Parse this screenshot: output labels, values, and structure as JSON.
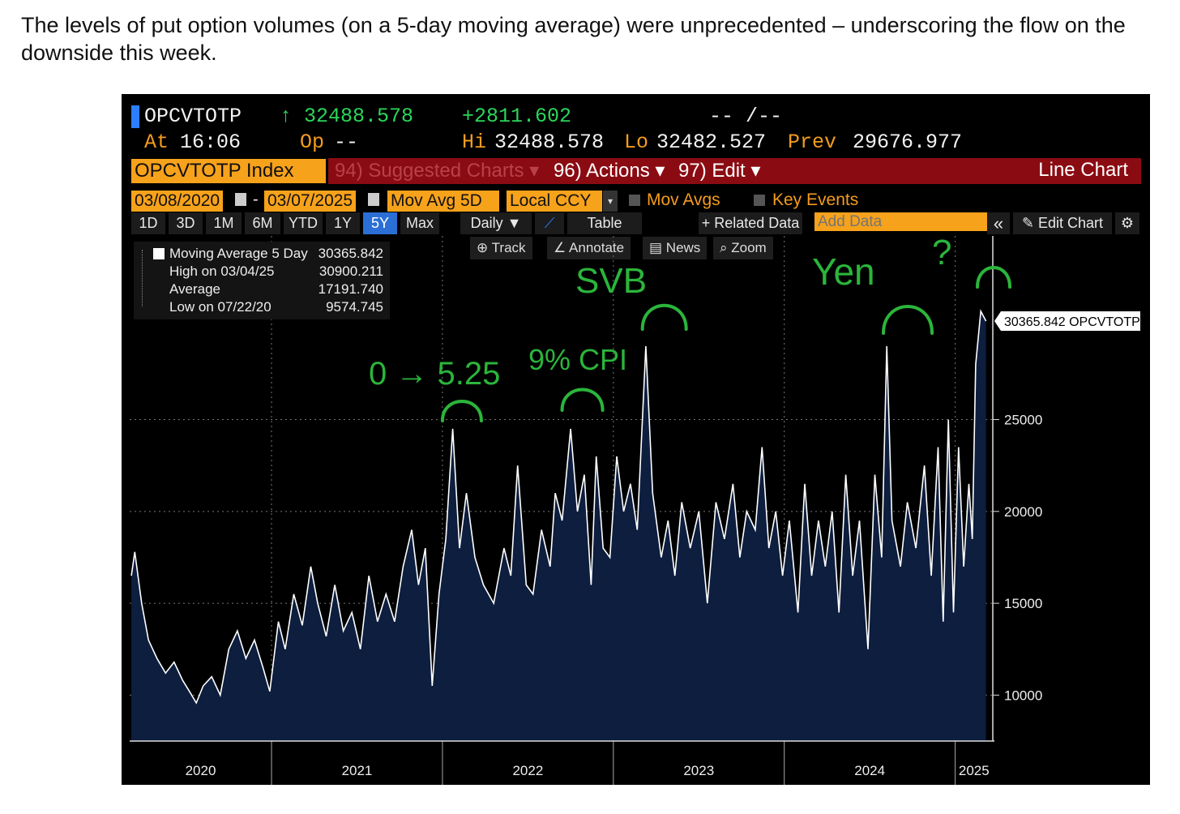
{
  "caption": "The levels of put option volumes (on a 5-day moving average) were unprecedented – underscoring the flow on the downside this week.",
  "header": {
    "ticker": "OPCVTOTP",
    "last": "↑ 32488.578",
    "change": "+2811.602",
    "dashes": "-- /--",
    "at_label": "At",
    "time": "16:06",
    "op_label": "Op",
    "op_value": "--",
    "hi_label": "Hi",
    "hi_value": "32488.578",
    "lo_label": "Lo",
    "lo_value": "32482.527",
    "prev_label": "Prev",
    "prev_value": "29676.977"
  },
  "menu": {
    "index_label": "OPCVTOTP Index",
    "suggested": "94) Suggested Charts ▾",
    "actions": "96) Actions ▾",
    "edit": "97) Edit ▾",
    "chart_type": "Line Chart"
  },
  "controls": {
    "start_date": "03/08/2020",
    "end_date": "03/07/2025",
    "dash": "-",
    "mov_avg": "Mov Avg 5D",
    "currency": "Local CCY",
    "mov_avgs": "Mov Avgs",
    "key_events": "Key Events"
  },
  "ranges": [
    "1D",
    "3D",
    "1M",
    "6M",
    "YTD",
    "1Y",
    "5Y",
    "Max"
  ],
  "active_range": "5Y",
  "toolbar": {
    "daily": "Daily ▼",
    "table": "Table",
    "related": "+ Related Data",
    "add_data_placeholder": "Add Data",
    "collapse": "«",
    "edit_chart": "Edit Chart"
  },
  "chart_tools": [
    "Track",
    "Annotate",
    "News",
    "Zoom"
  ],
  "legend": {
    "rows": [
      {
        "label": "Moving Average 5 Day",
        "value": "30365.842"
      },
      {
        "label": "High on 03/04/25",
        "value": "30900.211"
      },
      {
        "label": "Average",
        "value": "17191.740"
      },
      {
        "label": "Low on 07/22/20",
        "value": "9574.745"
      }
    ]
  },
  "annotations": [
    "0 → 5.25",
    "9% CPI",
    "SVB",
    "Yen",
    "?"
  ],
  "colors": {
    "background": "#000000",
    "fill": "#0d1e3f",
    "line": "#ffffff",
    "annotation": "#2bb53b",
    "orange": "#f39c1c",
    "red_bar": "#8b0b12"
  },
  "chart_data": {
    "type": "area",
    "title": "",
    "series": [
      {
        "name": "Moving Average 5 Day",
        "points": [
          [
            2020.18,
            16500
          ],
          [
            2020.2,
            17800
          ],
          [
            2020.24,
            15000
          ],
          [
            2020.28,
            13000
          ],
          [
            2020.33,
            12000
          ],
          [
            2020.38,
            11200
          ],
          [
            2020.43,
            11800
          ],
          [
            2020.48,
            10800
          ],
          [
            2020.52,
            10200
          ],
          [
            2020.56,
            9574.745
          ],
          [
            2020.6,
            10500
          ],
          [
            2020.65,
            11000
          ],
          [
            2020.7,
            10000
          ],
          [
            2020.75,
            12500
          ],
          [
            2020.8,
            13500
          ],
          [
            2020.85,
            12000
          ],
          [
            2020.9,
            13000
          ],
          [
            2020.95,
            11500
          ],
          [
            2020.99,
            10200
          ],
          [
            2021.04,
            14000
          ],
          [
            2021.08,
            12500
          ],
          [
            2021.13,
            15500
          ],
          [
            2021.18,
            13800
          ],
          [
            2021.23,
            17000
          ],
          [
            2021.27,
            15000
          ],
          [
            2021.32,
            13200
          ],
          [
            2021.37,
            16000
          ],
          [
            2021.42,
            13500
          ],
          [
            2021.47,
            14500
          ],
          [
            2021.52,
            12500
          ],
          [
            2021.57,
            16500
          ],
          [
            2021.62,
            14000
          ],
          [
            2021.67,
            15500
          ],
          [
            2021.72,
            14000
          ],
          [
            2021.77,
            17000
          ],
          [
            2021.82,
            19000
          ],
          [
            2021.86,
            16000
          ],
          [
            2021.9,
            18000
          ],
          [
            2021.94,
            10500
          ],
          [
            2021.98,
            15500
          ],
          [
            2022.02,
            18500
          ],
          [
            2022.06,
            24500
          ],
          [
            2022.1,
            18000
          ],
          [
            2022.14,
            21000
          ],
          [
            2022.19,
            17500
          ],
          [
            2022.24,
            16000
          ],
          [
            2022.3,
            15000
          ],
          [
            2022.36,
            18000
          ],
          [
            2022.4,
            16500
          ],
          [
            2022.44,
            22500
          ],
          [
            2022.49,
            16000
          ],
          [
            2022.53,
            15500
          ],
          [
            2022.58,
            19000
          ],
          [
            2022.63,
            17000
          ],
          [
            2022.66,
            21000
          ],
          [
            2022.7,
            19500
          ],
          [
            2022.75,
            24500
          ],
          [
            2022.79,
            20000
          ],
          [
            2022.83,
            22000
          ],
          [
            2022.87,
            16000
          ],
          [
            2022.9,
            23000
          ],
          [
            2022.94,
            18000
          ],
          [
            2022.98,
            17500
          ],
          [
            2023.02,
            23000
          ],
          [
            2023.06,
            20000
          ],
          [
            2023.1,
            21500
          ],
          [
            2023.14,
            19000
          ],
          [
            2023.19,
            29000
          ],
          [
            2023.23,
            21000
          ],
          [
            2023.28,
            17500
          ],
          [
            2023.32,
            19500
          ],
          [
            2023.36,
            16500
          ],
          [
            2023.4,
            20500
          ],
          [
            2023.45,
            18000
          ],
          [
            2023.5,
            20000
          ],
          [
            2023.55,
            15000
          ],
          [
            2023.6,
            20500
          ],
          [
            2023.65,
            18500
          ],
          [
            2023.7,
            21500
          ],
          [
            2023.74,
            17500
          ],
          [
            2023.78,
            20000
          ],
          [
            2023.83,
            19000
          ],
          [
            2023.87,
            23500
          ],
          [
            2023.91,
            18000
          ],
          [
            2023.95,
            20000
          ],
          [
            2023.99,
            16500
          ],
          [
            2024.03,
            19500
          ],
          [
            2024.08,
            14500
          ],
          [
            2024.12,
            21500
          ],
          [
            2024.16,
            16500
          ],
          [
            2024.2,
            19500
          ],
          [
            2024.24,
            17000
          ],
          [
            2024.28,
            20000
          ],
          [
            2024.32,
            14500
          ],
          [
            2024.36,
            22000
          ],
          [
            2024.4,
            16500
          ],
          [
            2024.44,
            19500
          ],
          [
            2024.49,
            12500
          ],
          [
            2024.53,
            22000
          ],
          [
            2024.57,
            17500
          ],
          [
            2024.6,
            29000
          ],
          [
            2024.63,
            19500
          ],
          [
            2024.68,
            17000
          ],
          [
            2024.72,
            20500
          ],
          [
            2024.77,
            18000
          ],
          [
            2024.82,
            22500
          ],
          [
            2024.86,
            16500
          ],
          [
            2024.9,
            23500
          ],
          [
            2024.93,
            14000
          ],
          [
            2024.96,
            25000
          ],
          [
            2024.99,
            14500
          ],
          [
            2025.02,
            23500
          ],
          [
            2025.05,
            17000
          ],
          [
            2025.08,
            21500
          ],
          [
            2025.1,
            18500
          ],
          [
            2025.12,
            28000
          ],
          [
            2025.15,
            30900.211
          ],
          [
            2025.18,
            30365.842
          ]
        ]
      }
    ],
    "xlim": [
      2020.17,
      2025.22
    ],
    "ylim": [
      7500,
      35000
    ],
    "x_ticks": [
      "2020",
      "2021",
      "2022",
      "2023",
      "2024",
      "2025"
    ],
    "y_ticks": [
      10000,
      15000,
      20000,
      25000
    ],
    "last_label": "30365.842 OPCVTOTP",
    "grid": true
  }
}
